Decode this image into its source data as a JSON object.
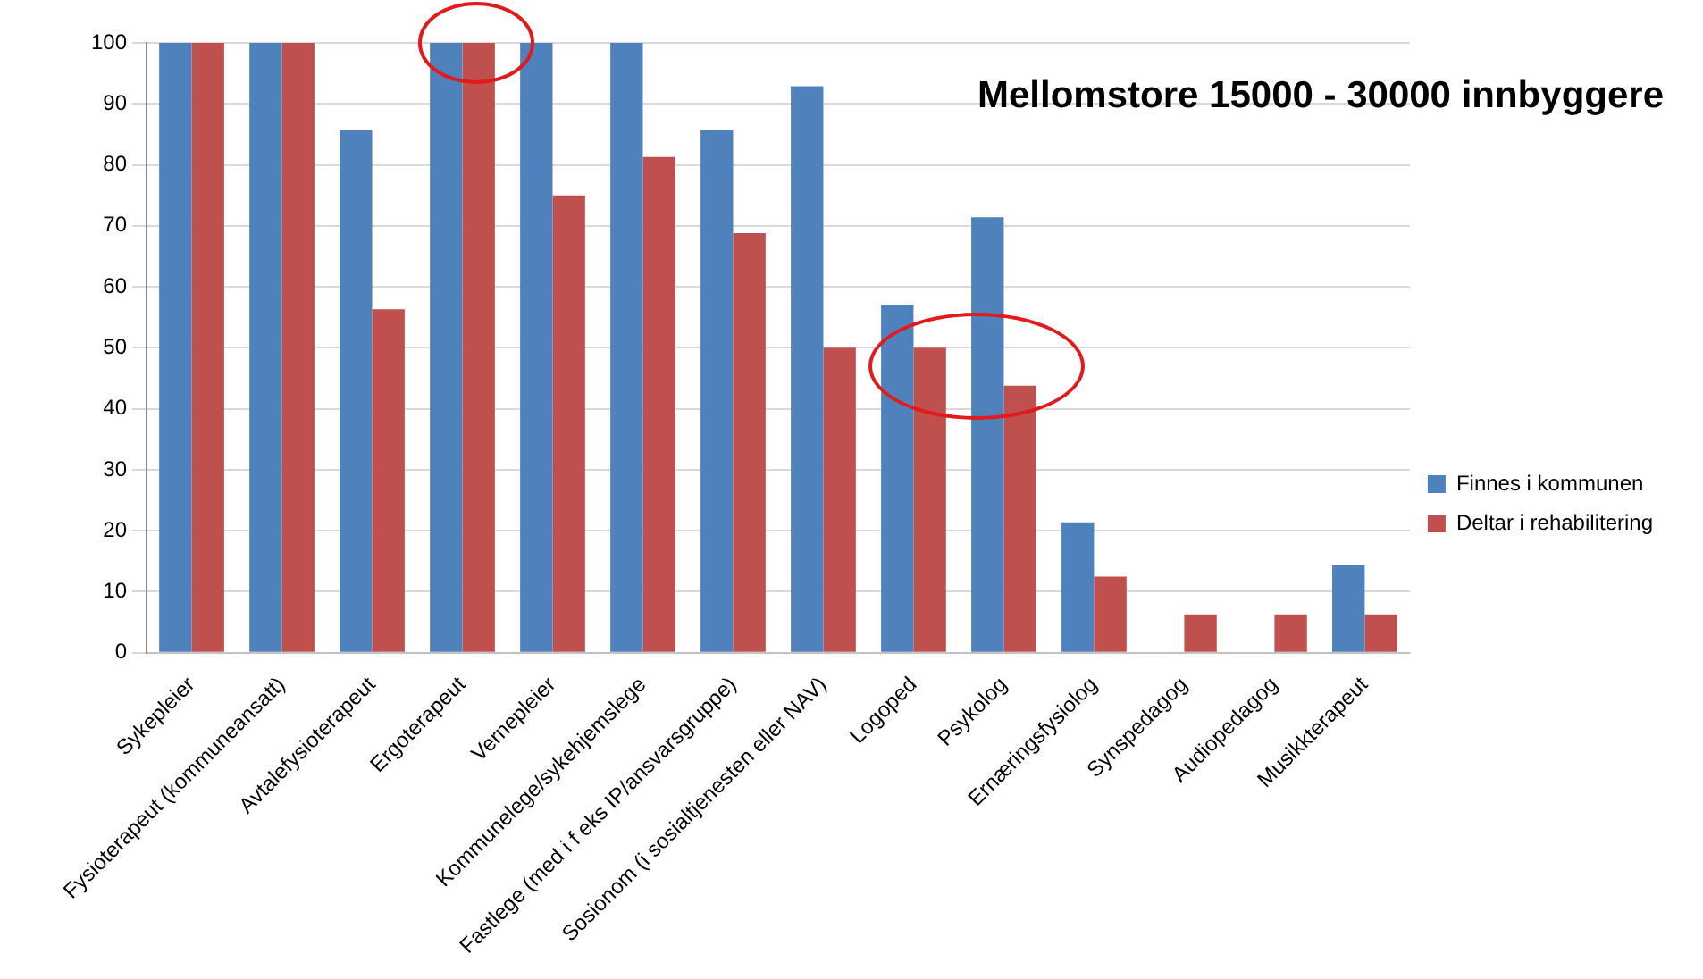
{
  "chart_data": {
    "type": "bar",
    "title": "Mellomstore 15000 - 30000 innbyggere",
    "categories": [
      "Sykepleier",
      "Fysioterapeut (kommuneansatt)",
      "Avtalefysioterapeut",
      "Ergoterapeut",
      "Vernepleier",
      "Kommunelege/sykehjemslege",
      "Fastlege (med i f eks IP/ansvarsgruppe)",
      "Sosionom (i sosialtjenesten eller NAV)",
      "Logoped",
      "Psykolog",
      "Ernæringsfysiolog",
      "Synspedagog",
      "Audiopedagog",
      "Musikkterapeut"
    ],
    "series": [
      {
        "name": "Finnes i kommunen",
        "color": "#4f81bd",
        "values": [
          100,
          100,
          85.7,
          100,
          100,
          100,
          85.7,
          92.9,
          57.1,
          71.4,
          21.4,
          0,
          0,
          14.3
        ]
      },
      {
        "name": "Deltar i rehabilitering",
        "color": "#c0504d",
        "values": [
          100,
          100,
          56.3,
          100,
          75,
          81.3,
          68.8,
          50,
          50,
          43.8,
          12.5,
          6.3,
          6.3,
          6.3
        ]
      }
    ],
    "ylim": [
      0,
      100
    ],
    "yticks": [
      0,
      10,
      20,
      30,
      40,
      50,
      60,
      70,
      80,
      90,
      100
    ],
    "grid": "y",
    "legend": "right"
  }
}
